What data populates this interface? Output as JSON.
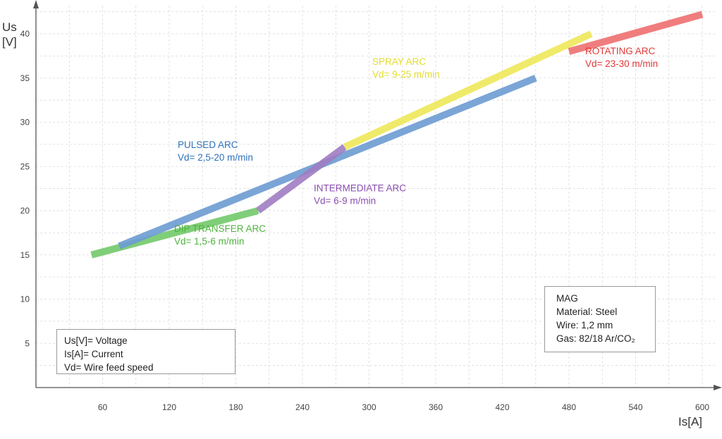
{
  "chart_data": {
    "type": "line",
    "xlabel": "Is[A]",
    "ylabel_line1": "Us",
    "ylabel_line2": "[V]",
    "xlim": [
      0,
      620
    ],
    "ylim": [
      0,
      44
    ],
    "x_ticks": [
      60,
      120,
      180,
      240,
      300,
      360,
      420,
      480,
      540,
      600
    ],
    "y_ticks": [
      5,
      10,
      15,
      20,
      25,
      30,
      35,
      40
    ],
    "grid": true,
    "series": [
      {
        "name": "DIP TRANSFER ARC",
        "sublabel": "Vd= 1,5-6 m/min",
        "color": "#72c96a",
        "x": [
          50,
          200
        ],
        "y": [
          15,
          20
        ],
        "label_at": [
          247,
          17.6
        ]
      },
      {
        "name": "PULSED ARC",
        "sublabel": "Vd= 2,5-20 m/min",
        "color": "#6b9bd1",
        "x": [
          75,
          450
        ],
        "y": [
          16,
          35
        ],
        "label_at": [
          252,
          27.1
        ]
      },
      {
        "name": "INTERMEDIATE ARC",
        "sublabel": "Vd= 6-9 m/min",
        "color": "#a07cc2",
        "x": [
          200,
          278
        ],
        "y": [
          20,
          27.2
        ],
        "label_at": [
          445,
          22.2
        ]
      },
      {
        "name": "SPRAY ARC",
        "sublabel": "Vd= 9-25 m/min",
        "color": "#eee85a",
        "x": [
          278,
          500
        ],
        "y": [
          27.2,
          40
        ],
        "label_at": [
          528,
          36.5
        ]
      },
      {
        "name": "ROTATING ARC",
        "sublabel": "Vd= 23-30 m/min",
        "color": "#ee6f6f",
        "x": [
          480,
          600
        ],
        "y": [
          38,
          42.2
        ],
        "label_at": [
          830,
          37.7
        ]
      }
    ],
    "label_colors": {
      "DIP TRANSFER ARC": "#4db33d",
      "PULSED ARC": "#2f72b8",
      "INTERMEDIATE ARC": "#8a4fb0",
      "SPRAY ARC": "#e3dc2a",
      "ROTATING ARC": "#e23838"
    }
  },
  "legend_box": {
    "line1": "Us[V]= Voltage",
    "line2": "Is[A]= Current",
    "line3": "Vd= Wire feed speed"
  },
  "info_box": {
    "line1": "MAG",
    "line2": "Material: Steel",
    "line3": "Wire: 1,2 mm",
    "line4": "Gas: 82/18 Ar/CO₂"
  }
}
